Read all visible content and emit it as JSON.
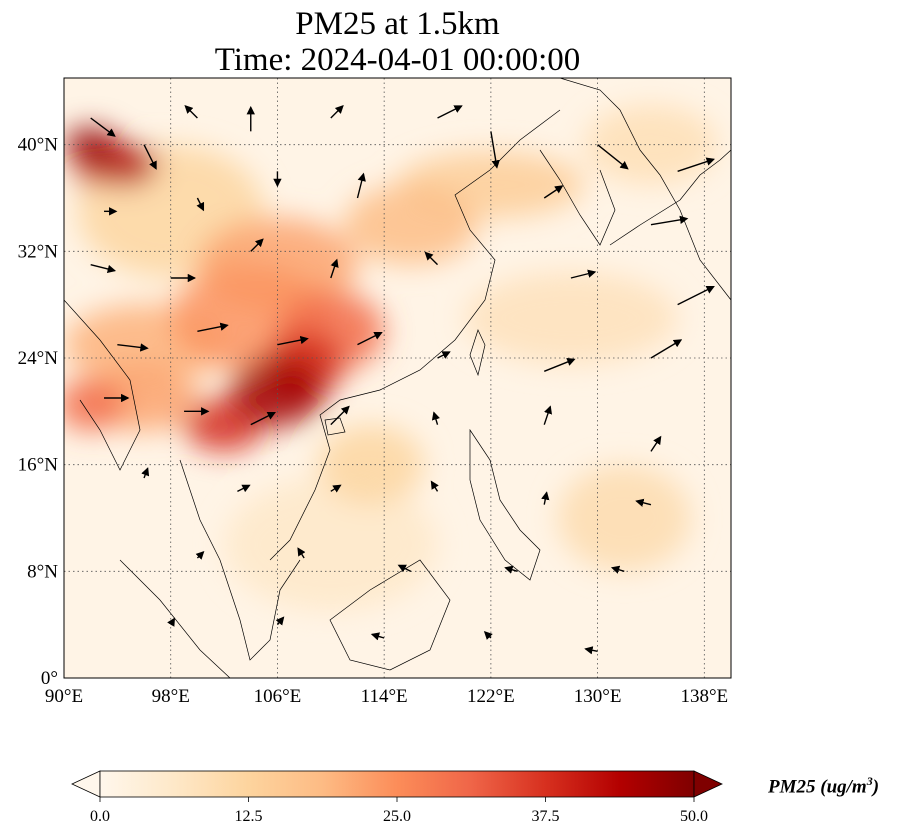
{
  "title": {
    "line1": "PM25 at 1.5km",
    "line2": "Time: 2024-04-01 00:00:00"
  },
  "map": {
    "extent": {
      "lon": [
        90,
        140
      ],
      "lat": [
        0,
        45
      ]
    },
    "lat_ticks": [
      {
        "value": 0,
        "label": "0°"
      },
      {
        "value": 8,
        "label": "8°N"
      },
      {
        "value": 16,
        "label": "16°N"
      },
      {
        "value": 24,
        "label": "24°N"
      },
      {
        "value": 32,
        "label": "32°N"
      },
      {
        "value": 40,
        "label": "40°N"
      }
    ],
    "lon_ticks": [
      {
        "value": 90,
        "label": "90°E"
      },
      {
        "value": 98,
        "label": "98°E"
      },
      {
        "value": 106,
        "label": "106°E"
      },
      {
        "value": 114,
        "label": "114°E"
      },
      {
        "value": 122,
        "label": "122°E"
      },
      {
        "value": 130,
        "label": "130°E"
      },
      {
        "value": 138,
        "label": "138°E"
      }
    ],
    "gridlines": "dotted",
    "colormap": "OrRd",
    "plumes": [
      {
        "lon": 92,
        "lat": 40.0,
        "rx": 2.0,
        "ry": 1.3,
        "value": 48
      },
      {
        "lon": 94.5,
        "lat": 38.5,
        "rx": 2.5,
        "ry": 1.6,
        "value": 44
      },
      {
        "lon": 92,
        "lat": 38,
        "rx": 1.3,
        "ry": 1.0,
        "value": 40
      },
      {
        "lon": 106,
        "lat": 21.5,
        "rx": 3.5,
        "ry": 2.6,
        "value": 46
      },
      {
        "lon": 108,
        "lat": 23.5,
        "rx": 3.0,
        "ry": 2.5,
        "value": 38
      },
      {
        "lon": 102,
        "lat": 19,
        "rx": 3.0,
        "ry": 2.0,
        "value": 38
      },
      {
        "lon": 110,
        "lat": 26,
        "rx": 4.0,
        "ry": 3.0,
        "value": 30
      },
      {
        "lon": 104,
        "lat": 27,
        "rx": 6.0,
        "ry": 4.0,
        "value": 24
      },
      {
        "lon": 106,
        "lat": 31,
        "rx": 6.0,
        "ry": 3.5,
        "value": 22
      },
      {
        "lon": 96,
        "lat": 25,
        "rx": 6.0,
        "ry": 3.0,
        "value": 20
      },
      {
        "lon": 92,
        "lat": 20.5,
        "rx": 2.5,
        "ry": 2.0,
        "value": 30
      },
      {
        "lon": 96,
        "lat": 21,
        "rx": 4.0,
        "ry": 2.5,
        "value": 22
      },
      {
        "lon": 116,
        "lat": 34,
        "rx": 5.0,
        "ry": 3.0,
        "value": 18
      },
      {
        "lon": 122,
        "lat": 37,
        "rx": 7.0,
        "ry": 2.5,
        "value": 14
      },
      {
        "lon": 98,
        "lat": 35,
        "rx": 7.0,
        "ry": 5.0,
        "value": 12
      },
      {
        "lon": 132,
        "lat": 12,
        "rx": 5.0,
        "ry": 4.0,
        "value": 10
      },
      {
        "lon": 113,
        "lat": 16,
        "rx": 4.0,
        "ry": 3.0,
        "value": 12
      },
      {
        "lon": 128,
        "lat": 27,
        "rx": 8.0,
        "ry": 3.5,
        "value": 8
      },
      {
        "lon": 110,
        "lat": 10,
        "rx": 8.0,
        "ry": 5.0,
        "value": 6
      },
      {
        "lon": 134,
        "lat": 40,
        "rx": 5.0,
        "ry": 3.0,
        "value": 9
      }
    ],
    "wind_vectors": [
      {
        "lon": 92,
        "lat": 42,
        "u": 2,
        "v": -1.5
      },
      {
        "lon": 96,
        "lat": 40,
        "u": 1,
        "v": -2
      },
      {
        "lon": 100,
        "lat": 42,
        "u": -1,
        "v": 1
      },
      {
        "lon": 104,
        "lat": 41,
        "u": 0,
        "v": 2
      },
      {
        "lon": 110,
        "lat": 42,
        "u": 1,
        "v": 1
      },
      {
        "lon": 118,
        "lat": 42,
        "u": 2,
        "v": 1
      },
      {
        "lon": 122,
        "lat": 41,
        "u": 0.5,
        "v": -3
      },
      {
        "lon": 130,
        "lat": 40,
        "u": 2.5,
        "v": -2
      },
      {
        "lon": 136,
        "lat": 38,
        "u": 3,
        "v": 1
      },
      {
        "lon": 93,
        "lat": 35,
        "u": 1,
        "v": 0
      },
      {
        "lon": 100,
        "lat": 36,
        "u": 0.5,
        "v": -1
      },
      {
        "lon": 106,
        "lat": 38,
        "u": 0,
        "v": -1.2
      },
      {
        "lon": 112,
        "lat": 36,
        "u": 0.5,
        "v": 2
      },
      {
        "lon": 126,
        "lat": 36,
        "u": 1.5,
        "v": 1
      },
      {
        "lon": 134,
        "lat": 34,
        "u": 3,
        "v": 0.5
      },
      {
        "lon": 92,
        "lat": 31,
        "u": 2,
        "v": -0.5
      },
      {
        "lon": 98,
        "lat": 30,
        "u": 2,
        "v": 0
      },
      {
        "lon": 104,
        "lat": 32,
        "u": 1,
        "v": 1
      },
      {
        "lon": 110,
        "lat": 30,
        "u": 0.5,
        "v": 1.5
      },
      {
        "lon": 118,
        "lat": 31,
        "u": -1,
        "v": 1
      },
      {
        "lon": 128,
        "lat": 30,
        "u": 2,
        "v": 0.5
      },
      {
        "lon": 136,
        "lat": 28,
        "u": 3,
        "v": 1.5
      },
      {
        "lon": 94,
        "lat": 25,
        "u": 2.5,
        "v": -0.3
      },
      {
        "lon": 100,
        "lat": 26,
        "u": 2.5,
        "v": 0.5
      },
      {
        "lon": 106,
        "lat": 25,
        "u": 2.5,
        "v": 0.5
      },
      {
        "lon": 112,
        "lat": 25,
        "u": 2,
        "v": 1
      },
      {
        "lon": 118,
        "lat": 24,
        "u": 1,
        "v": 0.5
      },
      {
        "lon": 126,
        "lat": 23,
        "u": 2.5,
        "v": 1
      },
      {
        "lon": 134,
        "lat": 24,
        "u": 2.5,
        "v": 1.5
      },
      {
        "lon": 93,
        "lat": 21,
        "u": 2,
        "v": 0
      },
      {
        "lon": 99,
        "lat": 20,
        "u": 2,
        "v": 0
      },
      {
        "lon": 104,
        "lat": 19,
        "u": 2,
        "v": 1
      },
      {
        "lon": 110,
        "lat": 19,
        "u": 1.5,
        "v": 1.5
      },
      {
        "lon": 118,
        "lat": 19,
        "u": -0.3,
        "v": 1
      },
      {
        "lon": 126,
        "lat": 19,
        "u": 0.5,
        "v": 1.5
      },
      {
        "lon": 134,
        "lat": 17,
        "u": 0.8,
        "v": 1.2
      },
      {
        "lon": 96,
        "lat": 15,
        "u": 0.3,
        "v": 0.8
      },
      {
        "lon": 103,
        "lat": 14,
        "u": 1,
        "v": 0.5
      },
      {
        "lon": 110,
        "lat": 14,
        "u": 0.8,
        "v": 0.5
      },
      {
        "lon": 118,
        "lat": 14,
        "u": -0.5,
        "v": 0.8
      },
      {
        "lon": 126,
        "lat": 13,
        "u": 0.2,
        "v": 1
      },
      {
        "lon": 134,
        "lat": 13,
        "u": -1.2,
        "v": 0.3
      },
      {
        "lon": 100,
        "lat": 9,
        "u": 0.5,
        "v": 0.5
      },
      {
        "lon": 108,
        "lat": 9,
        "u": -0.5,
        "v": 0.8
      },
      {
        "lon": 116,
        "lat": 8,
        "u": -1,
        "v": 0.5
      },
      {
        "lon": 124,
        "lat": 8,
        "u": -1,
        "v": 0.3
      },
      {
        "lon": 132,
        "lat": 8,
        "u": -1,
        "v": 0.3
      },
      {
        "lon": 98,
        "lat": 4,
        "u": 0.3,
        "v": 0.5
      },
      {
        "lon": 106,
        "lat": 4,
        "u": 0.5,
        "v": 0.6
      },
      {
        "lon": 114,
        "lat": 3,
        "u": -1,
        "v": 0.3
      },
      {
        "lon": 122,
        "lat": 3,
        "u": -0.5,
        "v": 0.5
      },
      {
        "lon": 130,
        "lat": 2,
        "u": -1,
        "v": 0.2
      }
    ]
  },
  "colorbar": {
    "label": "PM25 (ug/m",
    "label_sup": "3",
    "label_close": ")",
    "vmin": 0,
    "vmax": 50,
    "extend": "both",
    "ticks": [
      {
        "value": 0,
        "label": "0.0"
      },
      {
        "value": 12.5,
        "label": "12.5"
      },
      {
        "value": 25,
        "label": "25.0"
      },
      {
        "value": 37.5,
        "label": "37.5"
      },
      {
        "value": 50,
        "label": "50.0"
      }
    ],
    "colors": [
      "#fff7ec",
      "#fee8c8",
      "#fdd49e",
      "#fdbb84",
      "#fc8d59",
      "#ef6548",
      "#d7301f",
      "#b30000",
      "#7f0000"
    ]
  }
}
